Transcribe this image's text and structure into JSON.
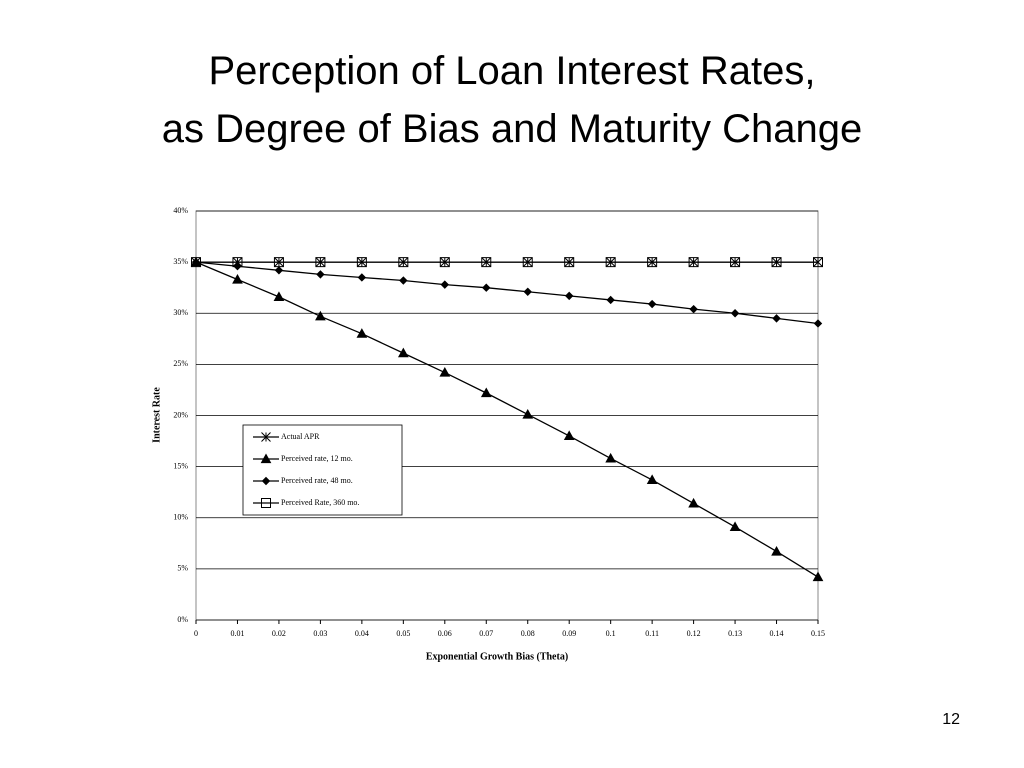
{
  "slide": {
    "title": [
      "Perception of Loan Interest Rates,",
      "as Degree of Bias and Maturity Change"
    ],
    "page_number": "12"
  },
  "chart_data": {
    "type": "line",
    "x_label": "Exponential Growth Bias (Theta)",
    "y_label": "Interest Rate",
    "x": [
      0,
      0.01,
      0.02,
      0.03,
      0.04,
      0.05,
      0.06,
      0.07,
      0.08,
      0.09,
      0.1,
      0.11,
      0.12,
      0.13,
      0.14,
      0.15
    ],
    "xlim": [
      0,
      0.15
    ],
    "xticks": [
      0,
      0.01,
      0.02,
      0.03,
      0.04,
      0.05,
      0.06,
      0.07,
      0.08,
      0.09,
      0.1,
      0.11,
      0.12,
      0.13,
      0.14,
      0.15
    ],
    "ylim": [
      0,
      40
    ],
    "yticks": [
      {
        "value": 0,
        "label": "0%"
      },
      {
        "value": 5,
        "label": "5%"
      },
      {
        "value": 10,
        "label": "10%"
      },
      {
        "value": 15,
        "label": "15%"
      },
      {
        "value": 20,
        "label": "20%"
      },
      {
        "value": 25,
        "label": "25%"
      },
      {
        "value": 30,
        "label": "30%"
      },
      {
        "value": 35,
        "label": "35%"
      },
      {
        "value": 40,
        "label": "40%"
      }
    ],
    "grid": true,
    "legend": "center-left",
    "series": [
      {
        "name": "Actual APR",
        "color": "#000000",
        "marker": "star",
        "values": [
          35,
          35,
          35,
          35,
          35,
          35,
          35,
          35,
          35,
          35,
          35,
          35,
          35,
          35,
          35,
          35
        ]
      },
      {
        "name": "Perceived rate, 12 mo.",
        "color": "#000000",
        "marker": "triangle",
        "values": [
          35,
          33.3,
          31.6,
          29.7,
          28.0,
          26.1,
          24.2,
          22.2,
          20.1,
          18.0,
          15.8,
          13.7,
          11.4,
          9.1,
          6.7,
          4.2
        ]
      },
      {
        "name": "Perceived rate, 48 mo.",
        "color": "#000000",
        "marker": "diamond",
        "values": [
          35,
          34.6,
          34.2,
          33.8,
          33.5,
          33.2,
          32.8,
          32.5,
          32.1,
          31.7,
          31.3,
          30.9,
          30.4,
          30.0,
          29.5,
          29.0
        ]
      },
      {
        "name": "Perceived Rate, 360 mo.",
        "color": "#000000",
        "marker": "square",
        "values": [
          35,
          35,
          35,
          35,
          35,
          35,
          35,
          35,
          35,
          35,
          35,
          35,
          35,
          35,
          35,
          35
        ]
      }
    ]
  }
}
